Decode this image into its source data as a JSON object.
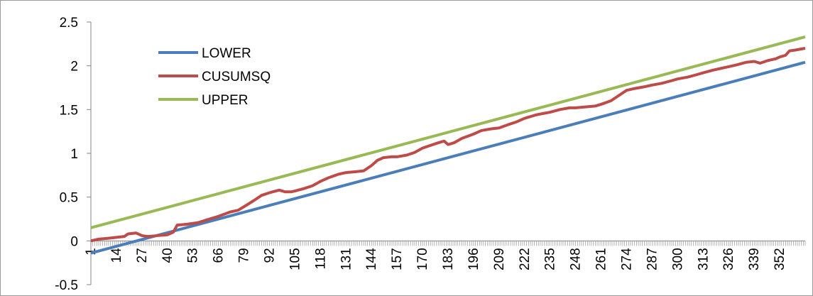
{
  "chart_data": {
    "type": "line",
    "title": "",
    "xlabel": "",
    "ylabel": "",
    "ylim": [
      -0.5,
      2.5
    ],
    "yticks": [
      -0.5,
      0,
      0.5,
      1,
      1.5,
      2,
      2.5
    ],
    "ytick_labels": [
      "-0.5",
      "0",
      "0.5",
      "1",
      "1.5",
      "2",
      "2.5"
    ],
    "xlim": [
      1,
      365
    ],
    "xticks": [
      1,
      14,
      27,
      40,
      53,
      66,
      79,
      92,
      105,
      118,
      131,
      144,
      157,
      170,
      183,
      196,
      209,
      222,
      235,
      248,
      261,
      274,
      287,
      300,
      313,
      326,
      339,
      352
    ],
    "xtick_labels": [
      "1",
      "14",
      "27",
      "40",
      "53",
      "66",
      "79",
      "92",
      "105",
      "118",
      "131",
      "144",
      "157",
      "170",
      "183",
      "196",
      "209",
      "222",
      "235",
      "248",
      "261",
      "274",
      "287",
      "300",
      "313",
      "326",
      "339",
      "352"
    ],
    "grid": false,
    "legend_position": "top-left",
    "series": [
      {
        "name": "LOWER",
        "color": "#4a7ebb",
        "points": [
          [
            1,
            -0.14
          ],
          [
            365,
            2.04
          ]
        ]
      },
      {
        "name": "CUSUMSQ",
        "color": "#be4b48",
        "points": [
          [
            1,
            0.0
          ],
          [
            5,
            0.02
          ],
          [
            10,
            0.03
          ],
          [
            14,
            0.04
          ],
          [
            18,
            0.05
          ],
          [
            20,
            0.08
          ],
          [
            24,
            0.09
          ],
          [
            27,
            0.06
          ],
          [
            30,
            0.05
          ],
          [
            35,
            0.06
          ],
          [
            40,
            0.07
          ],
          [
            43,
            0.1
          ],
          [
            45,
            0.18
          ],
          [
            50,
            0.19
          ],
          [
            53,
            0.2
          ],
          [
            56,
            0.21
          ],
          [
            60,
            0.24
          ],
          [
            66,
            0.28
          ],
          [
            72,
            0.33
          ],
          [
            76,
            0.35
          ],
          [
            79,
            0.39
          ],
          [
            84,
            0.46
          ],
          [
            88,
            0.52
          ],
          [
            92,
            0.55
          ],
          [
            97,
            0.58
          ],
          [
            100,
            0.56
          ],
          [
            103,
            0.56
          ],
          [
            105,
            0.57
          ],
          [
            110,
            0.6
          ],
          [
            114,
            0.63
          ],
          [
            118,
            0.68
          ],
          [
            122,
            0.72
          ],
          [
            127,
            0.76
          ],
          [
            131,
            0.78
          ],
          [
            136,
            0.79
          ],
          [
            140,
            0.8
          ],
          [
            144,
            0.86
          ],
          [
            147,
            0.92
          ],
          [
            150,
            0.95
          ],
          [
            154,
            0.96
          ],
          [
            157,
            0.96
          ],
          [
            162,
            0.98
          ],
          [
            166,
            1.01
          ],
          [
            170,
            1.06
          ],
          [
            174,
            1.09
          ],
          [
            178,
            1.12
          ],
          [
            181,
            1.14
          ],
          [
            183,
            1.1
          ],
          [
            186,
            1.12
          ],
          [
            190,
            1.17
          ],
          [
            196,
            1.22
          ],
          [
            200,
            1.26
          ],
          [
            205,
            1.28
          ],
          [
            209,
            1.29
          ],
          [
            214,
            1.33
          ],
          [
            218,
            1.36
          ],
          [
            222,
            1.4
          ],
          [
            228,
            1.44
          ],
          [
            235,
            1.47
          ],
          [
            240,
            1.5
          ],
          [
            245,
            1.52
          ],
          [
            248,
            1.52
          ],
          [
            253,
            1.53
          ],
          [
            258,
            1.54
          ],
          [
            261,
            1.56
          ],
          [
            266,
            1.6
          ],
          [
            270,
            1.66
          ],
          [
            274,
            1.72
          ],
          [
            278,
            1.74
          ],
          [
            283,
            1.76
          ],
          [
            287,
            1.78
          ],
          [
            292,
            1.8
          ],
          [
            297,
            1.83
          ],
          [
            300,
            1.85
          ],
          [
            305,
            1.87
          ],
          [
            310,
            1.9
          ],
          [
            313,
            1.92
          ],
          [
            318,
            1.95
          ],
          [
            322,
            1.97
          ],
          [
            326,
            1.99
          ],
          [
            330,
            2.01
          ],
          [
            335,
            2.04
          ],
          [
            339,
            2.05
          ],
          [
            342,
            2.03
          ],
          [
            346,
            2.06
          ],
          [
            350,
            2.08
          ],
          [
            352,
            2.1
          ],
          [
            355,
            2.12
          ],
          [
            357,
            2.17
          ],
          [
            360,
            2.18
          ],
          [
            365,
            2.2
          ]
        ]
      },
      {
        "name": "UPPER",
        "color": "#98b954",
        "points": [
          [
            1,
            0.15
          ],
          [
            365,
            2.33
          ]
        ]
      }
    ]
  }
}
